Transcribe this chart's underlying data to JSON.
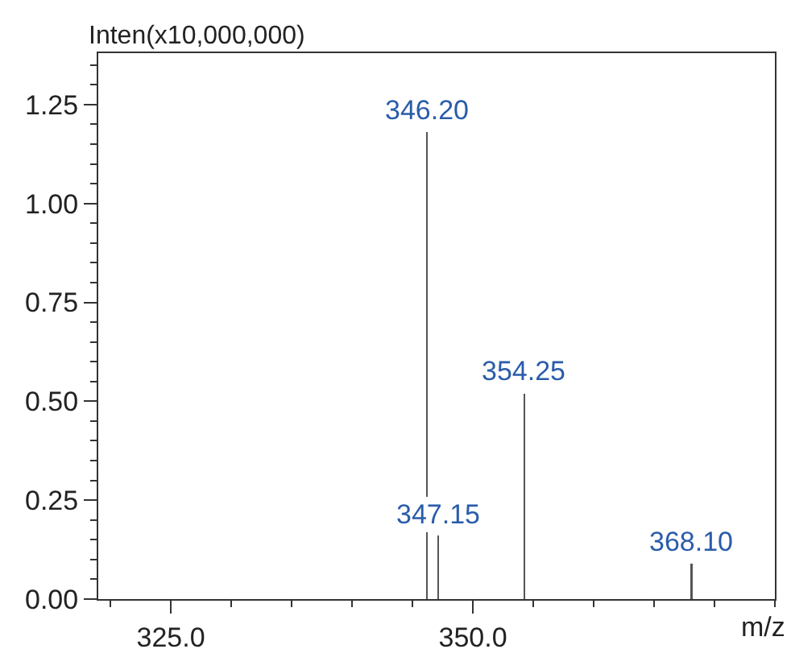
{
  "chart_data": {
    "type": "bar",
    "ylabel": "Inten(x10,000,000)",
    "xlabel": "m/z",
    "x": [
      346.2,
      347.15,
      354.25,
      368.1
    ],
    "values": [
      1.18,
      0.16,
      0.52,
      0.09
    ],
    "annotations": [
      {
        "text": "346.20",
        "x": 346.2,
        "y": 1.18
      },
      {
        "text": "347.15",
        "x": 347.15,
        "y": 0.16
      },
      {
        "text": "354.25",
        "x": 354.25,
        "y": 0.52
      },
      {
        "text": "368.10",
        "x": 368.1,
        "y": 0.09
      }
    ],
    "color": "#555555",
    "xlim": [
      319,
      375
    ],
    "xticks": [
      {
        "value": 320,
        "label": null
      },
      {
        "value": 325,
        "label": "325.0"
      },
      {
        "value": 330,
        "label": null
      },
      {
        "value": 335,
        "label": null
      },
      {
        "value": 340,
        "label": null
      },
      {
        "value": 345,
        "label": null
      },
      {
        "value": 350,
        "label": "350.0"
      },
      {
        "value": 355,
        "label": null
      },
      {
        "value": 360,
        "label": null
      },
      {
        "value": 365,
        "label": null
      },
      {
        "value": 370,
        "label": null
      },
      {
        "value": 375,
        "label": null
      }
    ],
    "ylim": [
      0,
      1.38
    ],
    "yticks": [
      {
        "value": 0,
        "label": "0.00"
      },
      {
        "value": 0.05,
        "label": null
      },
      {
        "value": 0.1,
        "label": null
      },
      {
        "value": 0.15,
        "label": null
      },
      {
        "value": 0.2,
        "label": null
      },
      {
        "value": 0.25,
        "label": "0.25"
      },
      {
        "value": 0.3,
        "label": null
      },
      {
        "value": 0.35,
        "label": null
      },
      {
        "value": 0.4,
        "label": null
      },
      {
        "value": 0.45,
        "label": null
      },
      {
        "value": 0.5,
        "label": "0.50"
      },
      {
        "value": 0.55,
        "label": null
      },
      {
        "value": 0.6,
        "label": null
      },
      {
        "value": 0.65,
        "label": null
      },
      {
        "value": 0.7,
        "label": null
      },
      {
        "value": 0.75,
        "label": "0.75"
      },
      {
        "value": 0.8,
        "label": null
      },
      {
        "value": 0.85,
        "label": null
      },
      {
        "value": 0.9,
        "label": null
      },
      {
        "value": 0.95,
        "label": null
      },
      {
        "value": 1,
        "label": "1.00"
      },
      {
        "value": 1.05,
        "label": null
      },
      {
        "value": 1.1,
        "label": null
      },
      {
        "value": 1.15,
        "label": null
      },
      {
        "value": 1.2,
        "label": null
      },
      {
        "value": 1.25,
        "label": "1.25"
      },
      {
        "value": 1.3,
        "label": null
      },
      {
        "value": 1.35,
        "label": null
      }
    ],
    "grid": false,
    "legend": false
  }
}
